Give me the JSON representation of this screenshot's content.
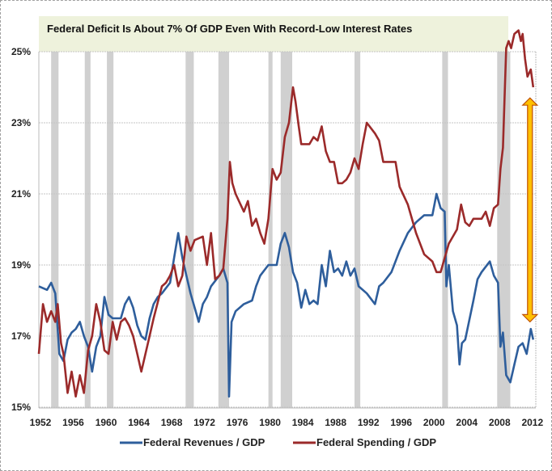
{
  "chart_data": {
    "type": "line",
    "title": "Federal Deficit Is About 7% Of GDP Even With Record-Low Interest Rates",
    "xlabel": "",
    "ylabel": "",
    "xlim": [
      1952,
      2012.5
    ],
    "ylim": [
      15,
      25.5
    ],
    "x_ticks": [
      1952,
      1956,
      1960,
      1964,
      1968,
      1972,
      1976,
      1980,
      1984,
      1988,
      1992,
      1996,
      2000,
      2004,
      2008,
      2012
    ],
    "y_ticks": [
      15,
      17,
      19,
      21,
      23,
      25
    ],
    "y_tick_labels": [
      "15%",
      "17%",
      "19%",
      "21%",
      "23%",
      "25%"
    ],
    "grid": "horizontal",
    "legend": "bottom",
    "colors": {
      "revenues": "#2e5e9c",
      "spending": "#9b2a2a",
      "recession": "#c8c8c8",
      "title_box": "#eef2dc",
      "arrow_fill": "#ffc000",
      "arrow_stroke": "#c05000"
    },
    "recessions": [
      [
        1953.5,
        1954.4
      ],
      [
        1957.6,
        1958.3
      ],
      [
        1960.3,
        1961.1
      ],
      [
        1969.9,
        1970.9
      ],
      [
        1973.9,
        1975.2
      ],
      [
        1980.0,
        1980.5
      ],
      [
        1981.5,
        1982.9
      ],
      [
        1990.5,
        1991.2
      ],
      [
        2001.2,
        2001.9
      ],
      [
        2007.9,
        2009.5
      ]
    ],
    "annotation": {
      "type": "double-arrow",
      "x": 2011.9,
      "from": 17.4,
      "to": 23.7,
      "note": "deficit gap"
    },
    "series": [
      {
        "name": "Federal Revenues / GDP",
        "key": "revenues",
        "x": [
          1952,
          1953,
          1953.5,
          1954,
          1954.5,
          1955,
          1955.5,
          1956,
          1956.5,
          1957,
          1957.5,
          1958,
          1958.5,
          1959,
          1959.5,
          1960,
          1960.5,
          1961,
          1962,
          1962.5,
          1963,
          1963.5,
          1964,
          1964.5,
          1965,
          1965.5,
          1966,
          1966.5,
          1967,
          1968,
          1968.5,
          1969,
          1969.5,
          1970,
          1970.5,
          1971,
          1971.5,
          1972,
          1972.5,
          1973,
          1974,
          1974.5,
          1975,
          1975.2,
          1975.5,
          1976,
          1977,
          1978,
          1978.5,
          1979,
          1980,
          1981,
          1981.5,
          1982,
          1982.5,
          1983,
          1983.5,
          1984,
          1984.5,
          1985,
          1985.5,
          1986,
          1986.5,
          1987,
          1987.5,
          1988,
          1988.5,
          1989,
          1989.5,
          1990,
          1990.5,
          1991,
          1992,
          1993,
          1993.5,
          1994,
          1995,
          1996,
          1997,
          1998,
          1999,
          2000,
          2000.5,
          2001,
          2001.5,
          2001.7,
          2002,
          2002.5,
          2003,
          2003.3,
          2003.6,
          2004,
          2005,
          2005.5,
          2006,
          2007,
          2007.5,
          2008,
          2008.3,
          2008.6,
          2009,
          2009.5,
          2010,
          2010.5,
          2011,
          2011.5,
          2012,
          2012.3
        ],
        "values": [
          18.4,
          18.3,
          18.5,
          18.2,
          16.5,
          16.3,
          16.9,
          17.1,
          17.2,
          17.4,
          17.0,
          16.7,
          16.0,
          16.7,
          17.0,
          18.1,
          17.6,
          17.5,
          17.5,
          17.9,
          18.1,
          17.8,
          17.3,
          17.0,
          16.9,
          17.5,
          17.9,
          18.1,
          18.2,
          18.5,
          19.2,
          19.9,
          19.2,
          18.7,
          18.2,
          17.8,
          17.4,
          17.9,
          18.1,
          18.4,
          18.7,
          18.9,
          18.5,
          15.3,
          17.4,
          17.7,
          17.9,
          18.0,
          18.4,
          18.7,
          19.0,
          19.0,
          19.6,
          19.9,
          19.5,
          18.8,
          18.5,
          17.8,
          18.3,
          17.9,
          18.0,
          17.9,
          19.0,
          18.4,
          19.4,
          18.8,
          18.9,
          18.7,
          19.1,
          18.7,
          18.9,
          18.4,
          18.2,
          17.9,
          18.4,
          18.5,
          18.8,
          19.4,
          19.9,
          20.2,
          20.4,
          20.4,
          21.0,
          20.6,
          20.5,
          18.4,
          19.0,
          17.7,
          17.3,
          16.2,
          16.8,
          16.9,
          18.0,
          18.6,
          18.8,
          19.1,
          18.7,
          18.5,
          16.7,
          17.1,
          15.9,
          15.7,
          16.2,
          16.7,
          16.8,
          16.5,
          17.2,
          16.9
        ]
      },
      {
        "name": "Federal Spending / GDP",
        "key": "spending",
        "x": [
          1952,
          1952.5,
          1953,
          1953.5,
          1954,
          1954.3,
          1954.7,
          1955,
          1955.5,
          1956,
          1956.5,
          1957,
          1957.5,
          1958,
          1958.5,
          1959,
          1959.5,
          1960,
          1960.5,
          1961,
          1961.5,
          1962,
          1962.5,
          1963,
          1963.5,
          1964,
          1964.5,
          1965,
          1965.5,
          1966,
          1967,
          1967.5,
          1968,
          1968.5,
          1969,
          1969.5,
          1970,
          1970.5,
          1971,
          1972,
          1972.5,
          1973,
          1973.5,
          1974,
          1974.5,
          1975,
          1975.3,
          1975.6,
          1976,
          1977,
          1977.5,
          1978,
          1978.5,
          1979,
          1979.5,
          1980,
          1980.5,
          1981,
          1981.5,
          1982,
          1982.5,
          1983,
          1983.3,
          1983.7,
          1984,
          1985,
          1985.5,
          1986,
          1986.5,
          1987,
          1987.5,
          1988,
          1988.5,
          1989,
          1989.5,
          1990,
          1990.5,
          1991,
          1991.5,
          1992,
          1993,
          1993.5,
          1994,
          1995,
          1995.5,
          1996,
          1997,
          1998,
          1999,
          2000,
          2000.5,
          2001,
          2001.5,
          2002,
          2003,
          2003.5,
          2004,
          2004.5,
          2005,
          2006,
          2006.5,
          2007,
          2007.5,
          2008,
          2008.3,
          2008.6,
          2009,
          2009.3,
          2009.6,
          2010,
          2010.5,
          2010.8,
          2011,
          2011.3,
          2011.6,
          2012,
          2012.3
        ],
        "values": [
          16.5,
          17.9,
          17.4,
          17.7,
          17.4,
          17.9,
          16.8,
          16.5,
          15.4,
          16.0,
          15.3,
          15.9,
          15.4,
          16.6,
          17.0,
          17.9,
          17.4,
          16.6,
          16.5,
          17.4,
          16.9,
          17.4,
          17.5,
          17.3,
          17.0,
          16.5,
          16.0,
          16.5,
          17.0,
          17.5,
          18.4,
          18.5,
          18.7,
          19.0,
          18.4,
          18.7,
          19.8,
          19.4,
          19.7,
          19.8,
          19.0,
          19.9,
          18.6,
          18.7,
          18.9,
          20.3,
          21.9,
          21.3,
          21.0,
          20.5,
          20.8,
          20.1,
          20.3,
          19.9,
          19.6,
          20.3,
          21.7,
          21.4,
          21.6,
          22.6,
          23.0,
          24.0,
          23.6,
          22.9,
          22.4,
          22.4,
          22.6,
          22.5,
          22.9,
          22.2,
          21.9,
          21.9,
          21.3,
          21.3,
          21.4,
          21.6,
          22.0,
          21.7,
          22.4,
          23.0,
          22.7,
          22.5,
          21.9,
          21.9,
          21.9,
          21.2,
          20.7,
          19.9,
          19.3,
          19.1,
          18.8,
          18.8,
          19.2,
          19.6,
          20.0,
          20.7,
          20.2,
          20.1,
          20.3,
          20.3,
          20.5,
          20.1,
          20.6,
          20.7,
          21.7,
          22.3,
          25.1,
          25.3,
          25.1,
          25.5,
          25.6,
          25.3,
          25.5,
          24.8,
          24.3,
          24.5,
          24.0
        ]
      }
    ]
  }
}
